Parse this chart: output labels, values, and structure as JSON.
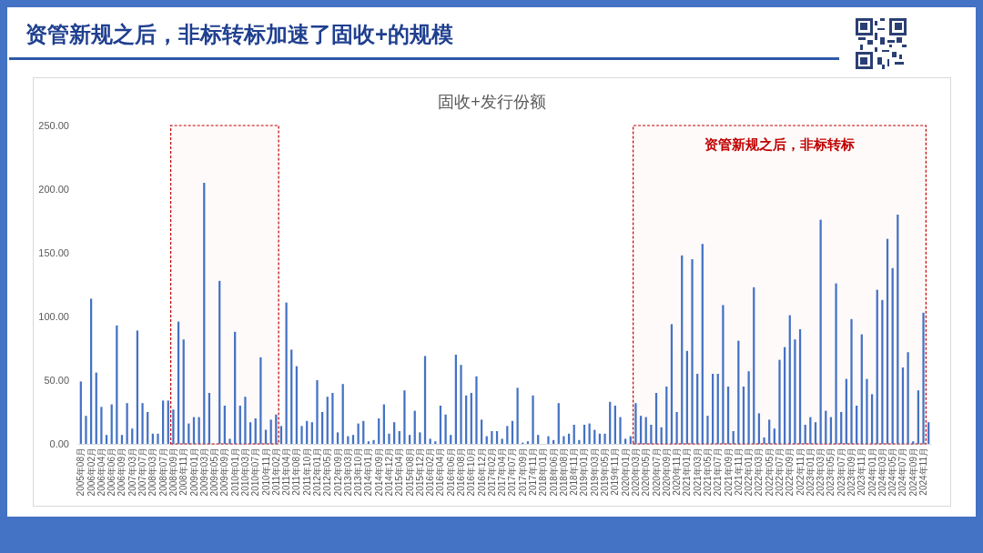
{
  "chart_data": {
    "type": "bar",
    "title": "资管新规之后，非标转标加速了固收+的规模",
    "subtitle": "固收+发行份额",
    "categories": [
      "2005年08月",
      null,
      "2006年02月",
      null,
      "2006年04月",
      null,
      "2006年06月",
      null,
      "2006年09月",
      null,
      "2007年03月",
      null,
      "2007年07月",
      null,
      "2008年03月",
      null,
      "2008年07月",
      null,
      "2008年09月",
      null,
      "2008年11月",
      null,
      "2009年01月",
      null,
      "2009年03月",
      null,
      "2009年05月",
      null,
      "2009年09月",
      null,
      "2010年01月",
      null,
      "2010年03月",
      null,
      "2010年07月",
      null,
      "2010年11月",
      null,
      "2011年02月",
      null,
      "2011年04月",
      null,
      "2011年08月",
      null,
      "2011年10月",
      null,
      "2012年01月",
      null,
      "2012年05月",
      null,
      "2012年09月",
      null,
      "2013年03月",
      null,
      "2013年10月",
      null,
      "2014年01月",
      null,
      "2014年09月",
      null,
      "2014年12月",
      null,
      "2015年04月",
      null,
      "2015年08月",
      null,
      "2015年12月",
      null,
      "2016年02月",
      null,
      "2016年04月",
      null,
      "2016年06月",
      null,
      "2016年08月",
      null,
      "2016年10月",
      null,
      "2016年12月",
      null,
      "2017年02月",
      null,
      "2017年04月",
      null,
      "2017年07月",
      null,
      "2017年09月",
      null,
      "2017年11月",
      null,
      "2018年01月",
      null,
      "2018年06月",
      null,
      "2018年08月",
      null,
      "2018年11月",
      null,
      "2019年01月",
      null,
      "2019年03月",
      null,
      "2019年05月",
      null,
      "2019年11月",
      null,
      "2020年01月",
      null,
      "2020年03月",
      null,
      "2020年05月",
      null,
      "2020年07月",
      null,
      "2020年09月",
      null,
      "2020年11月",
      null,
      "2021年01月",
      null,
      "2021年03月",
      null,
      "2021年05月",
      null,
      "2021年07月",
      null,
      "2021年09月",
      null,
      "2021年11月",
      null,
      "2022年01月",
      null,
      "2022年03月",
      null,
      "2022年05月",
      null,
      "2022年07月",
      null,
      "2022年09月",
      null,
      "2022年11月",
      null,
      "2023年01月",
      null,
      "2023年03月",
      null,
      "2023年05月",
      null,
      "2023年07月",
      null,
      "2023年09月",
      null,
      "2023年11月",
      null,
      "2024年01月",
      null,
      "2024年03月",
      null,
      "2024年05月",
      null,
      "2024年07月",
      null,
      "2024年09月",
      null,
      "2024年11月",
      null
    ],
    "values": [
      49,
      22,
      114,
      56,
      29,
      7,
      31,
      93,
      7,
      32,
      12,
      89,
      32,
      25,
      8,
      8,
      34,
      34,
      27,
      96,
      82,
      16,
      21,
      21,
      205,
      40,
      null,
      128,
      30,
      4,
      88,
      30,
      37,
      17,
      20,
      68,
      11,
      19,
      23,
      14,
      111,
      74,
      61,
      14,
      18,
      17,
      50,
      25,
      37,
      40,
      9,
      47,
      6,
      7,
      16,
      18,
      2,
      3,
      20,
      31,
      8,
      17,
      10,
      42,
      7,
      26,
      9,
      69,
      4,
      2,
      30,
      23,
      7,
      70,
      62,
      38,
      40,
      53,
      19,
      6,
      10,
      10,
      4,
      14,
      18,
      44,
      1,
      2,
      38,
      7,
      null,
      6,
      3,
      32,
      6,
      8,
      15,
      3,
      15,
      16,
      11,
      8,
      8,
      33,
      30,
      21,
      4,
      6,
      32,
      22,
      21,
      15,
      40,
      13,
      45,
      94,
      25,
      148,
      73,
      145,
      55,
      157,
      22,
      55,
      55,
      109,
      45,
      10,
      81,
      45,
      57,
      123,
      24,
      5,
      19,
      12,
      66,
      76,
      101,
      82,
      90,
      15,
      21,
      17,
      176,
      26,
      21,
      126,
      25,
      51,
      98,
      30,
      86,
      51,
      39,
      121,
      113,
      161,
      138,
      180,
      60,
      72,
      2,
      42,
      103,
      17
    ],
    "color": "#4472c4",
    "ylim": [
      0,
      250
    ],
    "yticks": [
      {
        "value": 0,
        "label": "0.00"
      },
      {
        "value": 50,
        "label": "50.00"
      },
      {
        "value": 100,
        "label": "100.00"
      },
      {
        "value": 150,
        "label": "150.00"
      },
      {
        "value": 200,
        "label": "200.00"
      },
      {
        "value": 250,
        "label": "250.00"
      }
    ],
    "bands": [
      {
        "axis": "x",
        "from": "2008年09月",
        "to": "2011年02月",
        "color": "#c00000"
      },
      {
        "axis": "x",
        "from": "2020年03月",
        "to": "2024年11月",
        "label": "资管新规之后，非标转标",
        "color": "#c00000"
      }
    ]
  }
}
